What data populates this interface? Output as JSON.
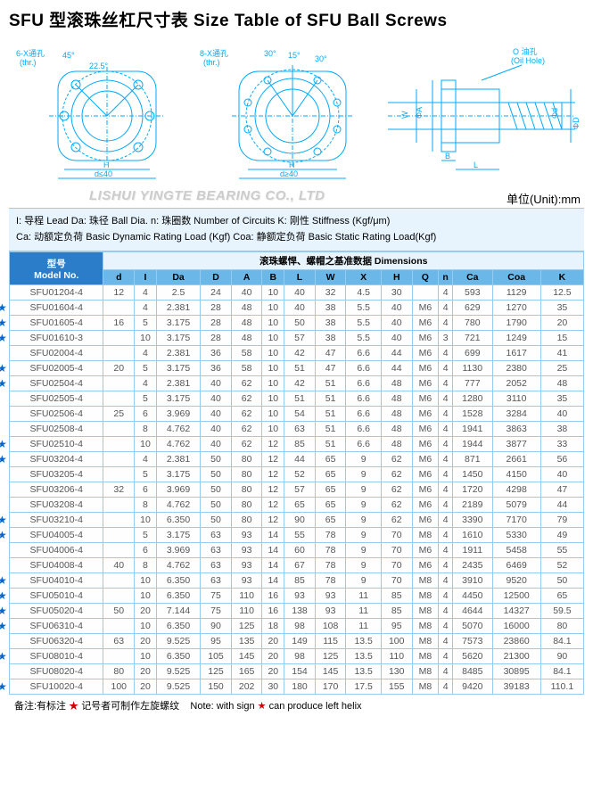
{
  "title": "SFU 型滚珠丝杠尺寸表 Size Table of SFU Ball Screws",
  "diagram_labels": {
    "d1_thr": "6-X通孔\n(thr.)",
    "d1_45": "45°",
    "d1_225": "22.5°",
    "d1_H": "H",
    "d1_d40": "d≤40",
    "d2_thr": "8-X通孔\n(thr.)",
    "d2_30": "30°",
    "d2_15": "15°",
    "d2_30b": "30°",
    "d2_H": "H",
    "d2_d40": "d≥40",
    "d3_oil": "O 油孔\n(Oil Hole)",
    "d3_A": "ΦA",
    "d3_W": "W",
    "d3_D": "ΦD",
    "d3_d": "Φd",
    "d3_B": "B",
    "d3_L": "L"
  },
  "watermark": "LISHUI YINGTE BEARING CO., LTD",
  "unit_label": "单位(Unit):mm",
  "legend": {
    "line1": "I: 导程  Lead    Da: 珠径  Ball Dia.    n: 珠圈数  Number of Circuits      K: 刚性  Stiffness (Kgf/μm)",
    "line2": "Ca: 动额定负荷  Basic Dynamic Rating Load (Kgf)    Coa: 静额定负荷  Basic Static Rating Load(Kgf)"
  },
  "model_header_cn": "型号",
  "model_header_en": "Model No.",
  "dim_header": "滚珠螺悍、螺帽之基准数据  Dimensions",
  "columns": [
    "d",
    "I",
    "Da",
    "D",
    "A",
    "B",
    "L",
    "W",
    "X",
    "H",
    "Q",
    "n",
    "Ca",
    "Coa",
    "K"
  ],
  "rows": [
    {
      "star": false,
      "model": "SFU01204-4",
      "cells": [
        "12",
        "4",
        "2.5",
        "24",
        "40",
        "10",
        "40",
        "32",
        "4.5",
        "30",
        "",
        "4",
        "593",
        "1129",
        "12.5"
      ]
    },
    {
      "star": true,
      "model": "SFU01604-4",
      "cells": [
        "",
        "4",
        "2.381",
        "28",
        "48",
        "10",
        "40",
        "38",
        "5.5",
        "40",
        "M6",
        "4",
        "629",
        "1270",
        "35"
      ],
      "rowspan_info": {
        "d": "16",
        "d_rows": 3
      }
    },
    {
      "star": true,
      "model": "SFU01605-4",
      "cells": [
        "16",
        "5",
        "3.175",
        "28",
        "48",
        "10",
        "50",
        "38",
        "5.5",
        "40",
        "M6",
        "4",
        "780",
        "1790",
        "20"
      ]
    },
    {
      "star": true,
      "model": "SFU01610-3",
      "cells": [
        "",
        "10",
        "3.175",
        "28",
        "48",
        "10",
        "57",
        "38",
        "5.5",
        "40",
        "M6",
        "3",
        "721",
        "1249",
        "15"
      ]
    },
    {
      "star": false,
      "model": "SFU02004-4",
      "cells": [
        "",
        "4",
        "2.381",
        "36",
        "58",
        "10",
        "42",
        "47",
        "6.6",
        "44",
        "M6",
        "4",
        "699",
        "1617",
        "41"
      ]
    },
    {
      "star": true,
      "model": "SFU02005-4",
      "cells": [
        "20",
        "5",
        "3.175",
        "36",
        "58",
        "10",
        "51",
        "47",
        "6.6",
        "44",
        "M6",
        "4",
        "1130",
        "2380",
        "25"
      ]
    },
    {
      "star": true,
      "model": "SFU02504-4",
      "cells": [
        "",
        "4",
        "2.381",
        "40",
        "62",
        "10",
        "42",
        "51",
        "6.6",
        "48",
        "M6",
        "4",
        "777",
        "2052",
        "48"
      ]
    },
    {
      "star": false,
      "model": "SFU02505-4",
      "cells": [
        "",
        "5",
        "3.175",
        "40",
        "62",
        "10",
        "51",
        "51",
        "6.6",
        "48",
        "M6",
        "4",
        "1280",
        "3110",
        "35"
      ]
    },
    {
      "star": false,
      "model": "SFU02506-4",
      "cells": [
        "25",
        "6",
        "3.969",
        "40",
        "62",
        "10",
        "54",
        "51",
        "6.6",
        "48",
        "M6",
        "4",
        "1528",
        "3284",
        "40"
      ]
    },
    {
      "star": false,
      "model": "SFU02508-4",
      "cells": [
        "",
        "8",
        "4.762",
        "40",
        "62",
        "10",
        "63",
        "51",
        "6.6",
        "48",
        "M6",
        "4",
        "1941",
        "3863",
        "38"
      ]
    },
    {
      "star": true,
      "model": "SFU02510-4",
      "cells": [
        "",
        "10",
        "4.762",
        "40",
        "62",
        "12",
        "85",
        "51",
        "6.6",
        "48",
        "M6",
        "4",
        "1944",
        "3877",
        "33"
      ]
    },
    {
      "star": true,
      "model": "SFU03204-4",
      "cells": [
        "",
        "4",
        "2.381",
        "50",
        "80",
        "12",
        "44",
        "65",
        "9",
        "62",
        "M6",
        "4",
        "871",
        "2661",
        "56"
      ]
    },
    {
      "star": false,
      "model": "SFU03205-4",
      "cells": [
        "",
        "5",
        "3.175",
        "50",
        "80",
        "12",
        "52",
        "65",
        "9",
        "62",
        "M6",
        "4",
        "1450",
        "4150",
        "40"
      ]
    },
    {
      "star": false,
      "model": "SFU03206-4",
      "cells": [
        "32",
        "6",
        "3.969",
        "50",
        "80",
        "12",
        "57",
        "65",
        "9",
        "62",
        "M6",
        "4",
        "1720",
        "4298",
        "47"
      ]
    },
    {
      "star": false,
      "model": "SFU03208-4",
      "cells": [
        "",
        "8",
        "4.762",
        "50",
        "80",
        "12",
        "65",
        "65",
        "9",
        "62",
        "M6",
        "4",
        "2189",
        "5079",
        "44"
      ]
    },
    {
      "star": true,
      "model": "SFU03210-4",
      "cells": [
        "",
        "10",
        "6.350",
        "50",
        "80",
        "12",
        "90",
        "65",
        "9",
        "62",
        "M6",
        "4",
        "3390",
        "7170",
        "79"
      ]
    },
    {
      "star": true,
      "model": "SFU04005-4",
      "cells": [
        "",
        "5",
        "3.175",
        "63",
        "93",
        "14",
        "55",
        "78",
        "9",
        "70",
        "M8",
        "4",
        "1610",
        "5330",
        "49"
      ]
    },
    {
      "star": false,
      "model": "SFU04006-4",
      "cells": [
        "",
        "6",
        "3.969",
        "63",
        "93",
        "14",
        "60",
        "78",
        "9",
        "70",
        "M6",
        "4",
        "1911",
        "5458",
        "55"
      ]
    },
    {
      "star": false,
      "model": "SFU04008-4",
      "cells": [
        "40",
        "8",
        "4.762",
        "63",
        "93",
        "14",
        "67",
        "78",
        "9",
        "70",
        "M6",
        "4",
        "2435",
        "6469",
        "52"
      ]
    },
    {
      "star": true,
      "model": "SFU04010-4",
      "cells": [
        "",
        "10",
        "6.350",
        "63",
        "93",
        "14",
        "85",
        "78",
        "9",
        "70",
        "M8",
        "4",
        "3910",
        "9520",
        "50"
      ]
    },
    {
      "star": true,
      "model": "SFU05010-4",
      "cells": [
        "",
        "10",
        "6.350",
        "75",
        "110",
        "16",
        "93",
        "93",
        "11",
        "85",
        "M8",
        "4",
        "4450",
        "12500",
        "65"
      ]
    },
    {
      "star": true,
      "model": "SFU05020-4",
      "cells": [
        "50",
        "20",
        "7.144",
        "75",
        "110",
        "16",
        "138",
        "93",
        "11",
        "85",
        "M8",
        "4",
        "4644",
        "14327",
        "59.5"
      ]
    },
    {
      "star": true,
      "model": "SFU06310-4",
      "cells": [
        "",
        "10",
        "6.350",
        "90",
        "125",
        "18",
        "98",
        "108",
        "11",
        "95",
        "M8",
        "4",
        "5070",
        "16000",
        "80"
      ]
    },
    {
      "star": false,
      "model": "SFU06320-4",
      "cells": [
        "63",
        "20",
        "9.525",
        "95",
        "135",
        "20",
        "149",
        "115",
        "13.5",
        "100",
        "M8",
        "4",
        "7573",
        "23860",
        "84.1"
      ]
    },
    {
      "star": true,
      "model": "SFU08010-4",
      "cells": [
        "",
        "10",
        "6.350",
        "105",
        "145",
        "20",
        "98",
        "125",
        "13.5",
        "110",
        "M8",
        "4",
        "5620",
        "21300",
        "90"
      ]
    },
    {
      "star": false,
      "model": "SFU08020-4",
      "cells": [
        "80",
        "20",
        "9.525",
        "125",
        "165",
        "20",
        "154",
        "145",
        "13.5",
        "130",
        "M8",
        "4",
        "8485",
        "30895",
        "84.1"
      ]
    },
    {
      "star": true,
      "model": "SFU10020-4",
      "cells": [
        "100",
        "20",
        "9.525",
        "150",
        "202",
        "30",
        "180",
        "170",
        "17.5",
        "155",
        "M8",
        "4",
        "9420",
        "39183",
        "110.1"
      ]
    }
  ],
  "footnote_cn": "备注:有标注",
  "footnote_star": "★",
  "footnote_cn2": "记号者可制作左旋螺纹",
  "footnote_en": "Note: with sign",
  "footnote_en2": "can produce left helix"
}
